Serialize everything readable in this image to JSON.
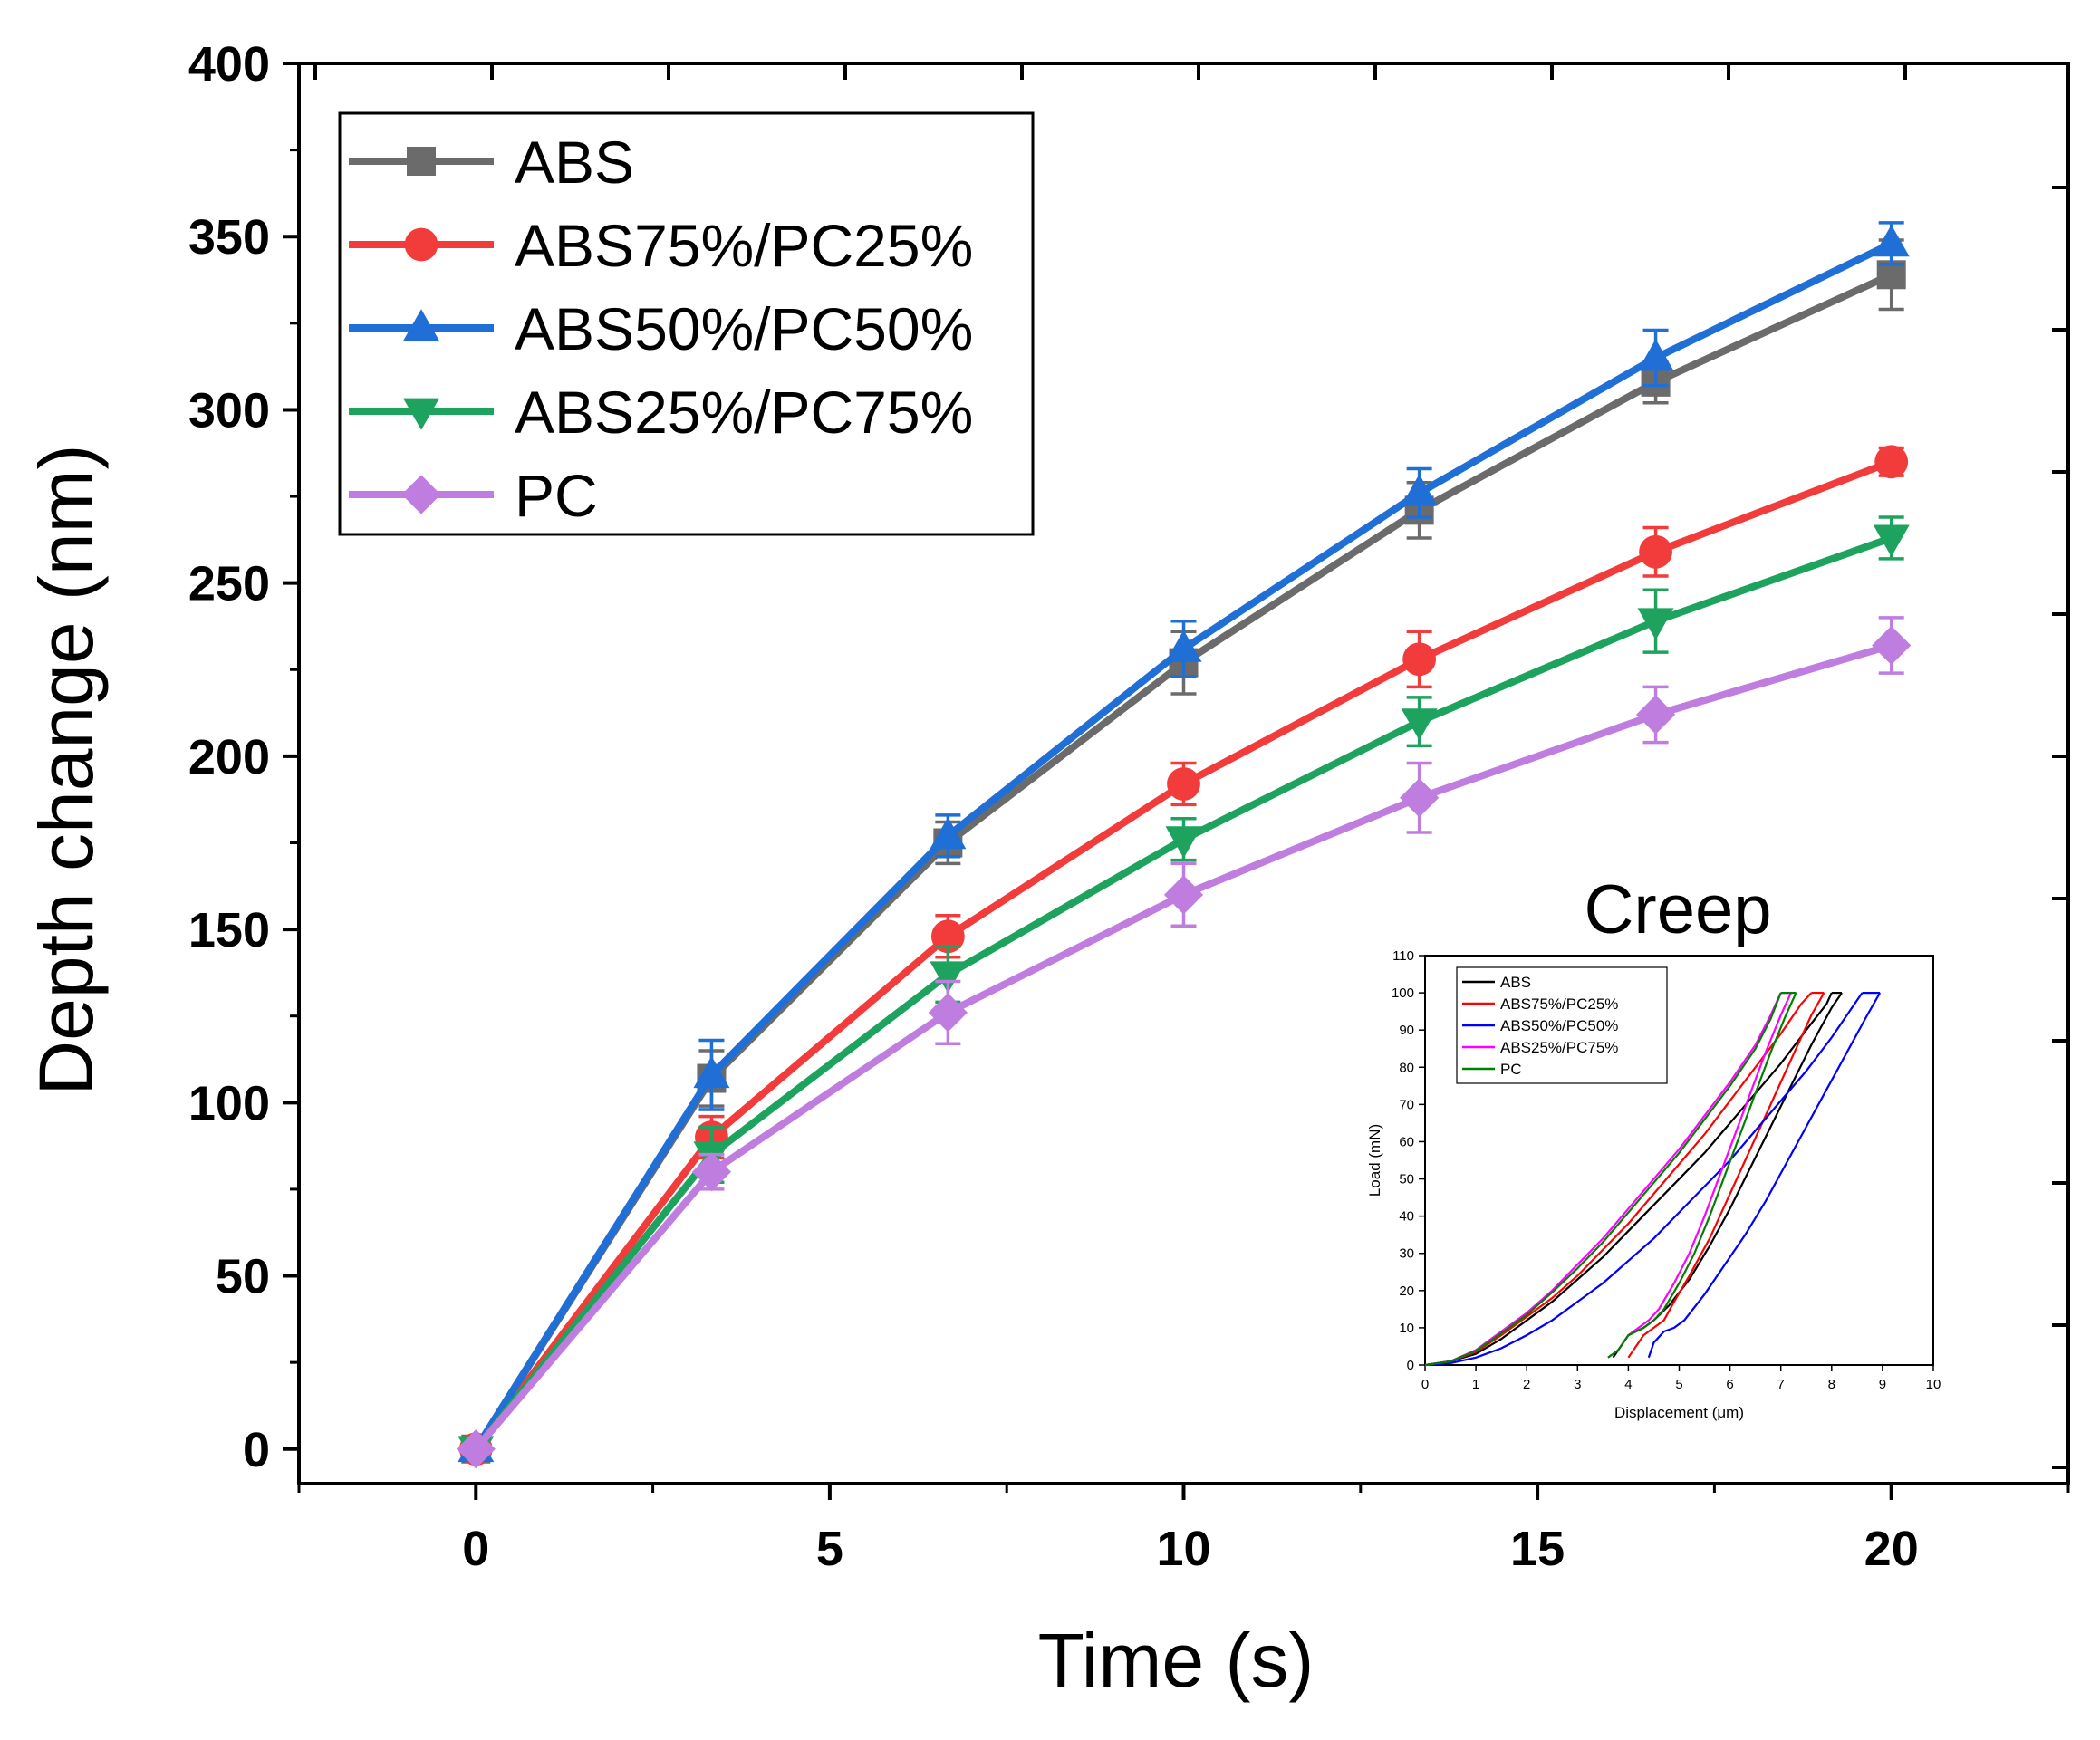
{
  "chart_data": [
    {
      "type": "line",
      "title": "",
      "xlabel": "Time (s)",
      "ylabel": "Depth change (nm)",
      "xlim": [
        -2.5,
        22.5
      ],
      "ylim": [
        -10,
        400
      ],
      "xticks": [
        0,
        5,
        10,
        15,
        20
      ],
      "xtick_labels": [
        "0",
        "5",
        "10",
        "15",
        "20"
      ],
      "yticks": [
        0,
        50,
        100,
        150,
        200,
        250,
        300,
        350,
        400
      ],
      "ytick_labels": [
        "0",
        "50",
        "100",
        "150",
        "200",
        "250",
        "300",
        "350",
        "400"
      ],
      "grid": false,
      "legend_position": "top-left",
      "x": [
        0,
        3.33,
        6.67,
        10,
        13.33,
        16.67,
        20
      ],
      "series": [
        {
          "name": "ABS",
          "color": "#6b6b6b",
          "marker": "square",
          "values": [
            0,
            107,
            175,
            227,
            271,
            308,
            339
          ],
          "errors": [
            0,
            8,
            6,
            9,
            8,
            6,
            10
          ]
        },
        {
          "name": "ABS75%/PC25%",
          "color": "#f23b3b",
          "marker": "circle",
          "values": [
            0,
            90,
            148,
            192,
            228,
            259,
            285
          ],
          "errors": [
            0,
            6,
            6,
            6,
            8,
            7,
            4
          ]
        },
        {
          "name": "ABS50%/PC50%",
          "color": "#1f6fd6",
          "marker": "triangle-up",
          "values": [
            0,
            108,
            177,
            231,
            276,
            315,
            348
          ],
          "errors": [
            0,
            10,
            6,
            8,
            7,
            8,
            6
          ]
        },
        {
          "name": "ABS25%/PC75%",
          "color": "#1ea35f",
          "marker": "triangle-down",
          "values": [
            0,
            85,
            137,
            176,
            210,
            239,
            263
          ],
          "errors": [
            0,
            8,
            8,
            6,
            7,
            9,
            6
          ]
        },
        {
          "name": "PC",
          "color": "#c07de0",
          "marker": "diamond",
          "values": [
            0,
            80,
            126,
            160,
            188,
            212,
            232
          ],
          "errors": [
            0,
            5,
            9,
            9,
            10,
            8,
            8
          ]
        }
      ]
    },
    {
      "type": "line",
      "title": "Creep",
      "xlabel": "Displacement (μm)",
      "ylabel": "Load (mN)",
      "xlim": [
        0,
        10
      ],
      "ylim": [
        0,
        110
      ],
      "xticks": [
        0,
        1,
        2,
        3,
        4,
        5,
        6,
        7,
        8,
        9,
        10
      ],
      "xtick_labels": [
        "0",
        "1",
        "2",
        "3",
        "4",
        "5",
        "6",
        "7",
        "8",
        "9",
        "10"
      ],
      "yticks": [
        0,
        10,
        20,
        30,
        40,
        50,
        60,
        70,
        80,
        90,
        100,
        110
      ],
      "ytick_labels": [
        "0",
        "10",
        "20",
        "30",
        "40",
        "50",
        "60",
        "70",
        "80",
        "90",
        "100",
        "110"
      ],
      "grid": false,
      "legend_position": "top-left",
      "series": [
        {
          "name": "ABS",
          "color": "#000000",
          "loading": [
            [
              0,
              0
            ],
            [
              0.5,
              1
            ],
            [
              1,
              3
            ],
            [
              1.5,
              7
            ],
            [
              2,
              12
            ],
            [
              2.5,
              17
            ],
            [
              3,
              23
            ],
            [
              3.5,
              29
            ],
            [
              4,
              36
            ],
            [
              4.5,
              43
            ],
            [
              5,
              50
            ],
            [
              5.5,
              57
            ],
            [
              6,
              65
            ],
            [
              6.5,
              73
            ],
            [
              7,
              81
            ],
            [
              7.5,
              90
            ],
            [
              7.9,
              97
            ],
            [
              8.0,
              100
            ]
          ],
          "unloading": [
            [
              8.2,
              100
            ],
            [
              8,
              96
            ],
            [
              7.6,
              86
            ],
            [
              7.2,
              75
            ],
            [
              6.8,
              64
            ],
            [
              6.4,
              53
            ],
            [
              6,
              42
            ],
            [
              5.6,
              32
            ],
            [
              5.2,
              23
            ],
            [
              4.8,
              16
            ],
            [
              4.5,
              12
            ],
            [
              4.3,
              10
            ],
            [
              4.0,
              8
            ],
            [
              3.8,
              4
            ],
            [
              3.7,
              2
            ]
          ]
        },
        {
          "name": "ABS75%/PC25%",
          "color": "#ff0000",
          "loading": [
            [
              0,
              0
            ],
            [
              0.5,
              1
            ],
            [
              1,
              3.5
            ],
            [
              1.5,
              8
            ],
            [
              2,
              13
            ],
            [
              2.5,
              18
            ],
            [
              3,
              24
            ],
            [
              3.5,
              31
            ],
            [
              4,
              38
            ],
            [
              4.5,
              46
            ],
            [
              5,
              54
            ],
            [
              5.5,
              62
            ],
            [
              6,
              71
            ],
            [
              6.5,
              80
            ],
            [
              7,
              89
            ],
            [
              7.4,
              97
            ],
            [
              7.6,
              100
            ]
          ],
          "unloading": [
            [
              7.85,
              100
            ],
            [
              7.6,
              94
            ],
            [
              7.2,
              82
            ],
            [
              6.8,
              70
            ],
            [
              6.4,
              58
            ],
            [
              6,
              46
            ],
            [
              5.6,
              34
            ],
            [
              5.2,
              24
            ],
            [
              4.9,
              17
            ],
            [
              4.7,
              12
            ],
            [
              4.5,
              10
            ],
            [
              4.3,
              8
            ],
            [
              4.1,
              4
            ],
            [
              4.0,
              2
            ]
          ]
        },
        {
          "name": "ABS50%/PC50%",
          "color": "#0000ff",
          "loading": [
            [
              0,
              0
            ],
            [
              0.5,
              0.5
            ],
            [
              1,
              2
            ],
            [
              1.5,
              4.5
            ],
            [
              2,
              8
            ],
            [
              2.5,
              12
            ],
            [
              3,
              17
            ],
            [
              3.5,
              22
            ],
            [
              4,
              28
            ],
            [
              4.5,
              34
            ],
            [
              5,
              41
            ],
            [
              5.5,
              48
            ],
            [
              6,
              55
            ],
            [
              6.5,
              63
            ],
            [
              7,
              71
            ],
            [
              7.5,
              79
            ],
            [
              8,
              88
            ],
            [
              8.4,
              96
            ],
            [
              8.6,
              100
            ]
          ],
          "unloading": [
            [
              8.95,
              100
            ],
            [
              8.7,
              94
            ],
            [
              8.3,
              84
            ],
            [
              7.9,
              74
            ],
            [
              7.5,
              64
            ],
            [
              7.1,
              54
            ],
            [
              6.7,
              44
            ],
            [
              6.3,
              35
            ],
            [
              5.9,
              27
            ],
            [
              5.5,
              19
            ],
            [
              5.1,
              12
            ],
            [
              4.9,
              10
            ],
            [
              4.7,
              9
            ],
            [
              4.5,
              6
            ],
            [
              4.4,
              2
            ]
          ]
        },
        {
          "name": "ABS25%/PC75%",
          "color": "#ff00ff",
          "loading": [
            [
              0,
              0
            ],
            [
              0.5,
              1
            ],
            [
              1,
              4
            ],
            [
              1.5,
              9
            ],
            [
              2,
              14
            ],
            [
              2.5,
              20
            ],
            [
              3,
              27
            ],
            [
              3.5,
              34
            ],
            [
              4,
              42
            ],
            [
              4.5,
              50
            ],
            [
              5,
              58
            ],
            [
              5.5,
              67
            ],
            [
              6,
              76
            ],
            [
              6.5,
              86
            ],
            [
              6.8,
              94
            ],
            [
              7,
              100
            ]
          ],
          "unloading": [
            [
              7.2,
              100
            ],
            [
              7,
              94
            ],
            [
              6.7,
              84
            ],
            [
              6.4,
              73
            ],
            [
              6.1,
              62
            ],
            [
              5.8,
              51
            ],
            [
              5.5,
              40
            ],
            [
              5.2,
              30
            ],
            [
              4.9,
              22
            ],
            [
              4.6,
              15
            ],
            [
              4.4,
              12
            ],
            [
              4.2,
              10
            ],
            [
              4.0,
              8
            ],
            [
              3.8,
              4
            ],
            [
              3.6,
              2
            ]
          ]
        },
        {
          "name": "PC",
          "color": "#008000",
          "loading": [
            [
              0,
              0
            ],
            [
              0.5,
              1
            ],
            [
              1,
              3.8
            ],
            [
              1.5,
              8.5
            ],
            [
              2,
              13.5
            ],
            [
              2.5,
              19.5
            ],
            [
              3,
              26
            ],
            [
              3.5,
              33
            ],
            [
              4,
              41
            ],
            [
              4.5,
              49
            ],
            [
              5,
              57
            ],
            [
              5.5,
              66
            ],
            [
              6,
              75
            ],
            [
              6.5,
              85
            ],
            [
              6.8,
              93
            ],
            [
              7,
              100
            ]
          ],
          "unloading": [
            [
              7.3,
              100
            ],
            [
              7.1,
              94
            ],
            [
              6.8,
              84
            ],
            [
              6.5,
              73
            ],
            [
              6.2,
              62
            ],
            [
              5.9,
              51
            ],
            [
              5.6,
              40
            ],
            [
              5.3,
              30
            ],
            [
              5,
              22
            ],
            [
              4.7,
              15
            ],
            [
              4.5,
              12
            ],
            [
              4.3,
              10
            ],
            [
              4.0,
              8
            ],
            [
              3.8,
              4
            ],
            [
              3.6,
              2
            ]
          ]
        }
      ]
    }
  ]
}
